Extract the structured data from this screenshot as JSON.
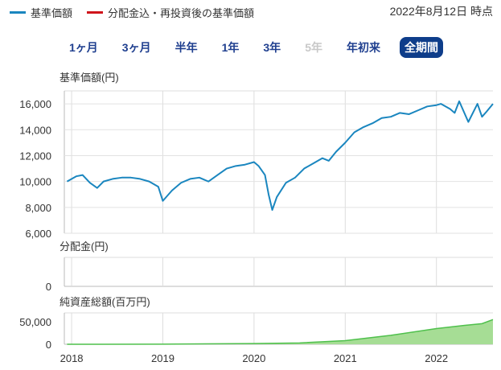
{
  "legend": [
    {
      "label": "基準価額",
      "color": "#1a86bf"
    },
    {
      "label": "分配金込・再投資後の基準価額",
      "color": "#d0141b"
    }
  ],
  "as_of": "2022年8月12日 時点",
  "tabs": [
    {
      "label": "1ヶ月",
      "state": "normal"
    },
    {
      "label": "3ヶ月",
      "state": "normal"
    },
    {
      "label": "半年",
      "state": "normal"
    },
    {
      "label": "1年",
      "state": "normal"
    },
    {
      "label": "3年",
      "state": "normal"
    },
    {
      "label": "5年",
      "state": "disabled"
    },
    {
      "label": "年初来",
      "state": "normal"
    },
    {
      "label": "全期間",
      "state": "active"
    }
  ],
  "chart_data": [
    {
      "type": "line",
      "ylabel": "基準価額(円)",
      "ylim": [
        6000,
        17000
      ],
      "yticks": [
        6000,
        8000,
        10000,
        12000,
        14000,
        16000
      ],
      "ytick_labels": [
        "6,000",
        "8,000",
        "10,000",
        "12,000",
        "14,000",
        "16,000"
      ],
      "series": [
        {
          "color": "#1a86bf",
          "x": [
            2017.95,
            2018.05,
            2018.12,
            2018.2,
            2018.28,
            2018.35,
            2018.45,
            2018.55,
            2018.65,
            2018.75,
            2018.85,
            2018.95,
            2019.0,
            2019.1,
            2019.2,
            2019.3,
            2019.4,
            2019.5,
            2019.6,
            2019.7,
            2019.8,
            2019.9,
            2020.0,
            2020.05,
            2020.12,
            2020.16,
            2020.2,
            2020.25,
            2020.35,
            2020.45,
            2020.55,
            2020.65,
            2020.75,
            2020.82,
            2020.9,
            2021.0,
            2021.1,
            2021.2,
            2021.3,
            2021.4,
            2021.5,
            2021.6,
            2021.7,
            2021.8,
            2021.9,
            2022.0,
            2022.05,
            2022.15,
            2022.2,
            2022.25,
            2022.35,
            2022.45,
            2022.5,
            2022.55,
            2022.62
          ],
          "values": [
            10000,
            10400,
            10500,
            9900,
            9500,
            10000,
            10200,
            10300,
            10300,
            10200,
            10000,
            9600,
            8500,
            9300,
            9900,
            10200,
            10300,
            10000,
            10500,
            11000,
            11200,
            11300,
            11500,
            11200,
            10500,
            9000,
            7800,
            8800,
            9900,
            10300,
            11000,
            11400,
            11800,
            11600,
            12300,
            13000,
            13800,
            14200,
            14500,
            14900,
            15000,
            15300,
            15200,
            15500,
            15800,
            15900,
            16000,
            15600,
            15300,
            16200,
            14600,
            16000,
            15000,
            15400,
            16000
          ]
        }
      ]
    },
    {
      "type": "bar",
      "ylabel": "分配金(円)",
      "ylim": [
        0,
        1
      ],
      "yticks": [
        0
      ],
      "ytick_labels": [
        "0"
      ],
      "values": []
    },
    {
      "type": "area",
      "ylabel": "純資産総額(百万円)",
      "ylim": [
        0,
        70000
      ],
      "yticks": [
        0,
        50000
      ],
      "ytick_labels": [
        "0",
        "50,000"
      ],
      "series": [
        {
          "color": "#4fc04c",
          "x": [
            2017.95,
            2019.0,
            2020.0,
            2020.5,
            2021.0,
            2021.5,
            2022.0,
            2022.3,
            2022.5,
            2022.62
          ],
          "values": [
            0,
            200,
            1500,
            3000,
            8000,
            20000,
            35000,
            42000,
            46000,
            55000
          ]
        }
      ]
    }
  ],
  "xaxis": {
    "range": [
      2017.92,
      2022.62
    ],
    "ticks": [
      2018,
      2019,
      2020,
      2021,
      2022
    ],
    "tick_labels": [
      "2018",
      "2019",
      "2020",
      "2021",
      "2022"
    ]
  }
}
